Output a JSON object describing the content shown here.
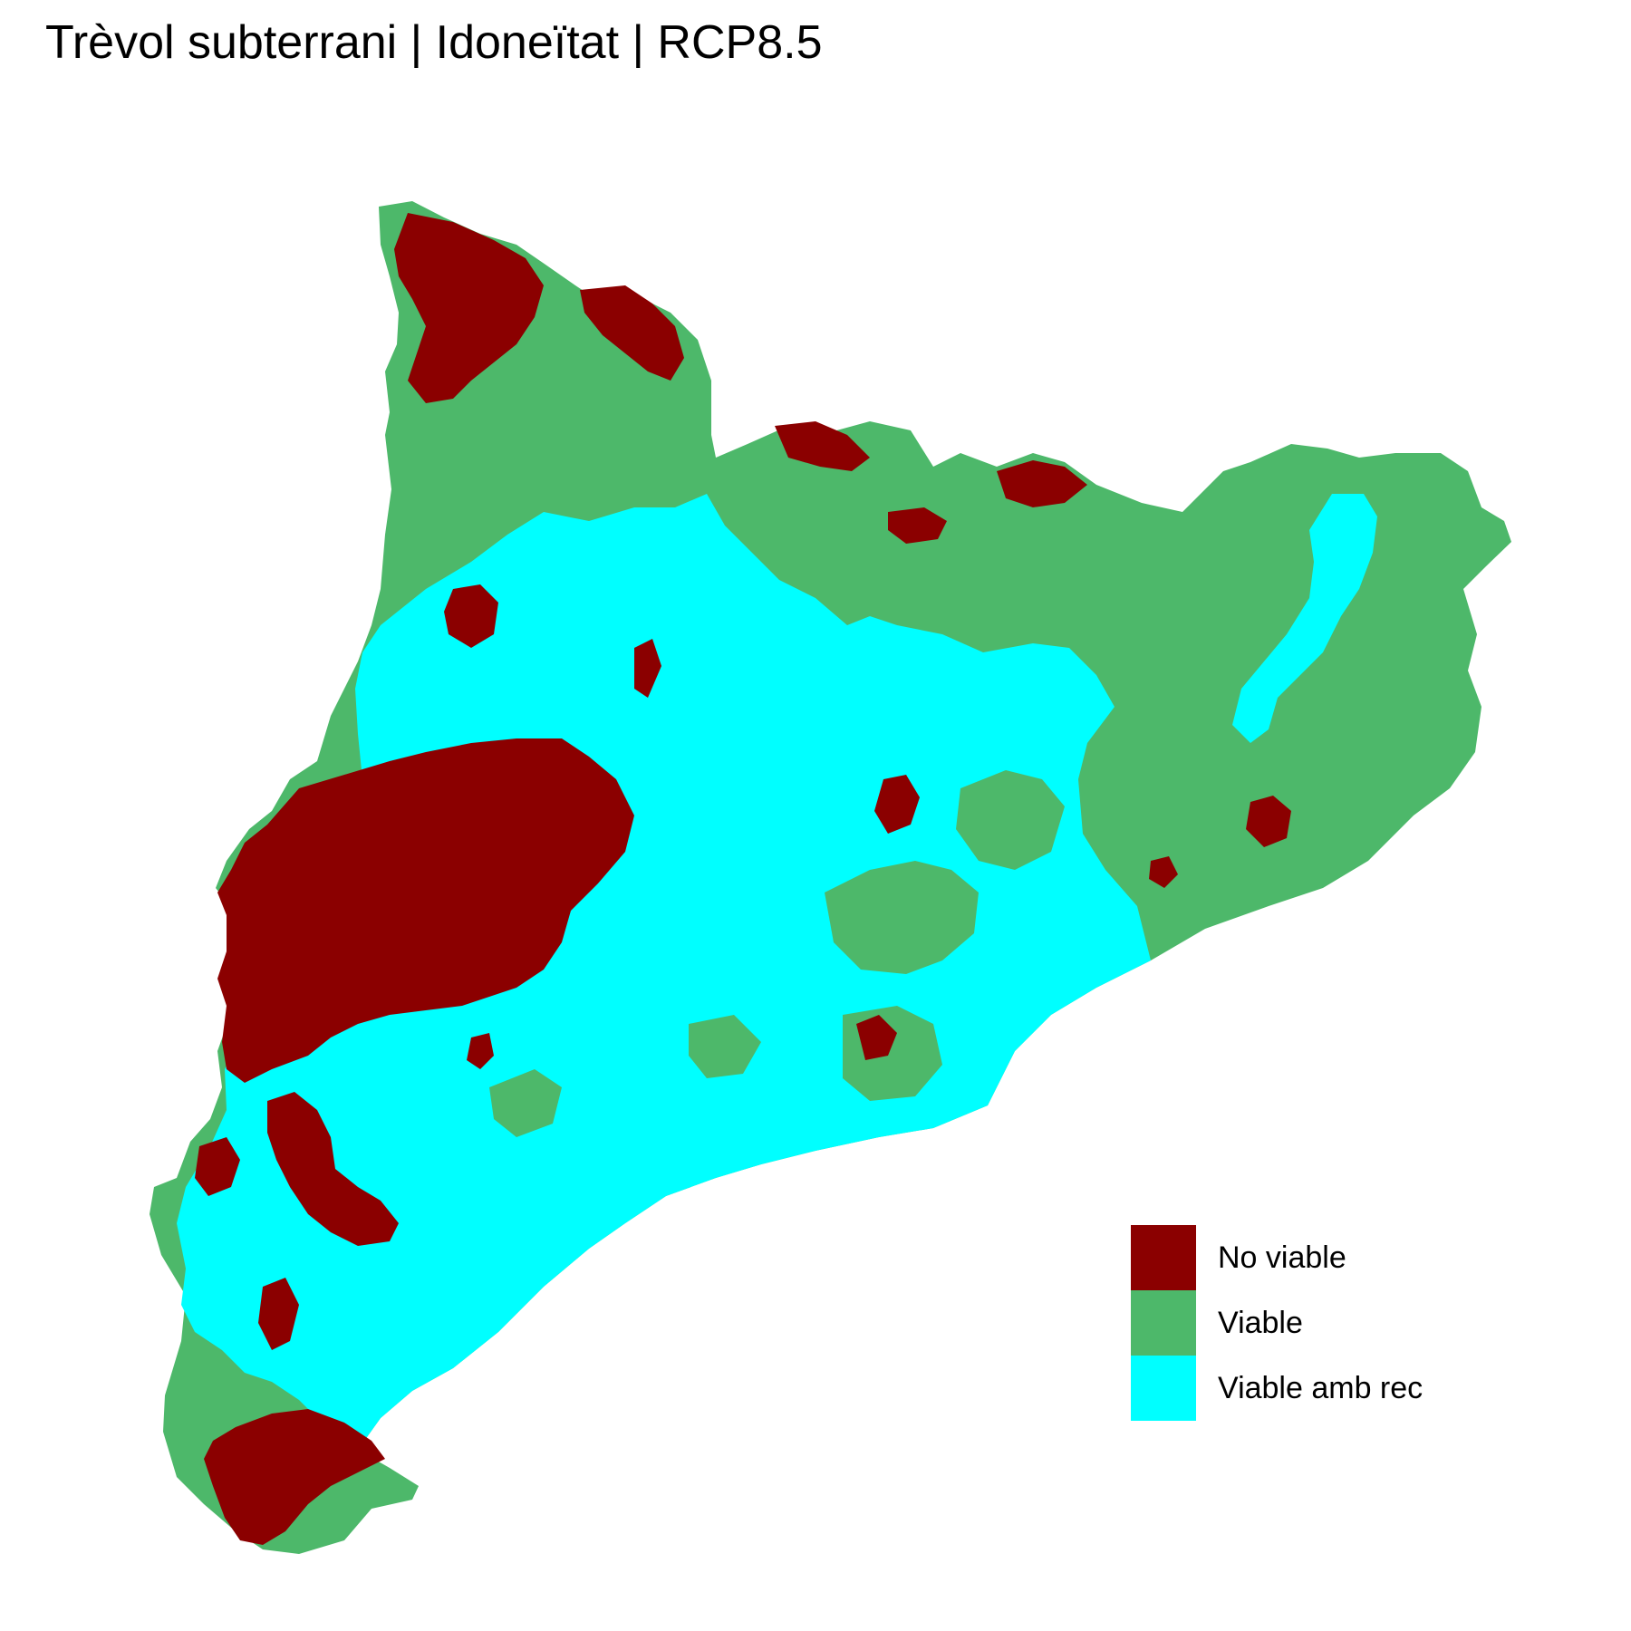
{
  "title": "Trèvol subterrani | Idoneïtat | RCP8.5",
  "colors": {
    "no_viable": "#8B0000",
    "viable": "#4DB86A",
    "viable_amb_rec": "#00FFFF",
    "background": "#FFFFFF"
  },
  "legend": {
    "items": [
      {
        "label": "No viable",
        "color": "#8B0000"
      },
      {
        "label": "Viable",
        "color": "#4DB86A"
      },
      {
        "label": "Viable amb rec",
        "color": "#00FFFF"
      }
    ]
  }
}
